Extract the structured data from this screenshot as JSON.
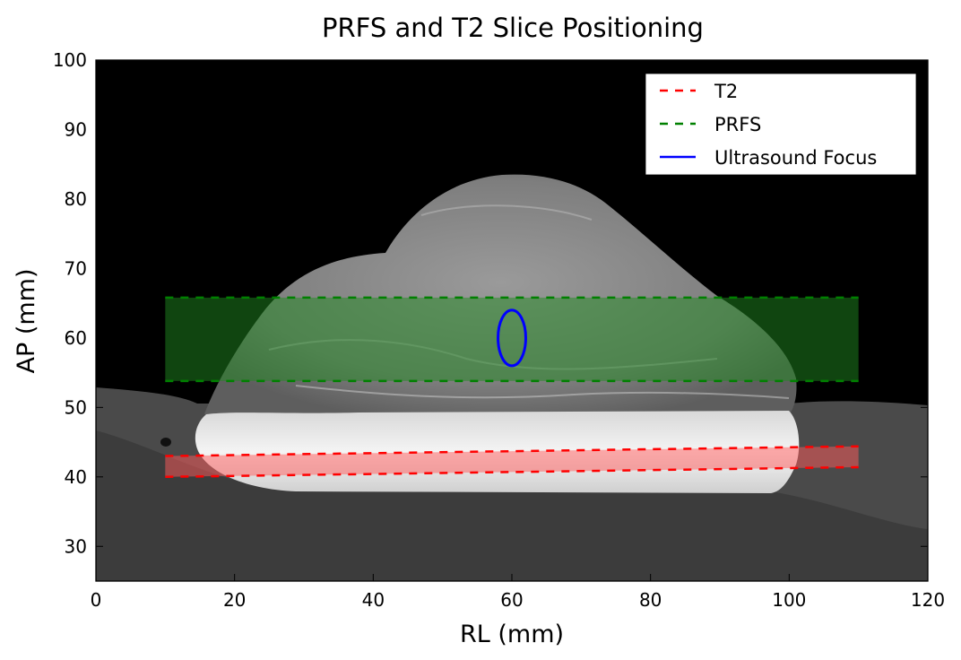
{
  "chart_data": {
    "type": "line",
    "title": "PRFS and T2 Slice Positioning",
    "xlabel": "RL (mm)",
    "ylabel": "AP (mm)",
    "xlim": [
      0,
      120
    ],
    "ylim": [
      25,
      100
    ],
    "xticks": [
      0,
      20,
      40,
      60,
      80,
      100,
      120
    ],
    "yticks": [
      30,
      40,
      50,
      60,
      70,
      80,
      90,
      100
    ],
    "grid": false,
    "legend_position": "top-right",
    "background": "grayscale MRI image (axial slice)",
    "series": [
      {
        "name": "T2",
        "style": "dashed",
        "color": "#ff0000",
        "band_fill": "#ff5a5a",
        "lines": [
          {
            "x": [
              10,
              110
            ],
            "y": [
              43.0,
              44.4
            ]
          },
          {
            "x": [
              10,
              110
            ],
            "y": [
              40.0,
              41.4
            ]
          }
        ]
      },
      {
        "name": "PRFS",
        "style": "dashed",
        "color": "#008000",
        "band_fill": "#1f8a1f",
        "lines": [
          {
            "x": [
              10,
              110
            ],
            "y": [
              65.8,
              65.8
            ]
          },
          {
            "x": [
              10,
              110
            ],
            "y": [
              53.8,
              53.8
            ]
          }
        ]
      },
      {
        "name": "Ultrasound Focus",
        "style": "solid",
        "color": "#0000ff",
        "ellipse": {
          "cx": 60,
          "cy": 60,
          "rx": 2,
          "ry": 4
        }
      }
    ]
  }
}
